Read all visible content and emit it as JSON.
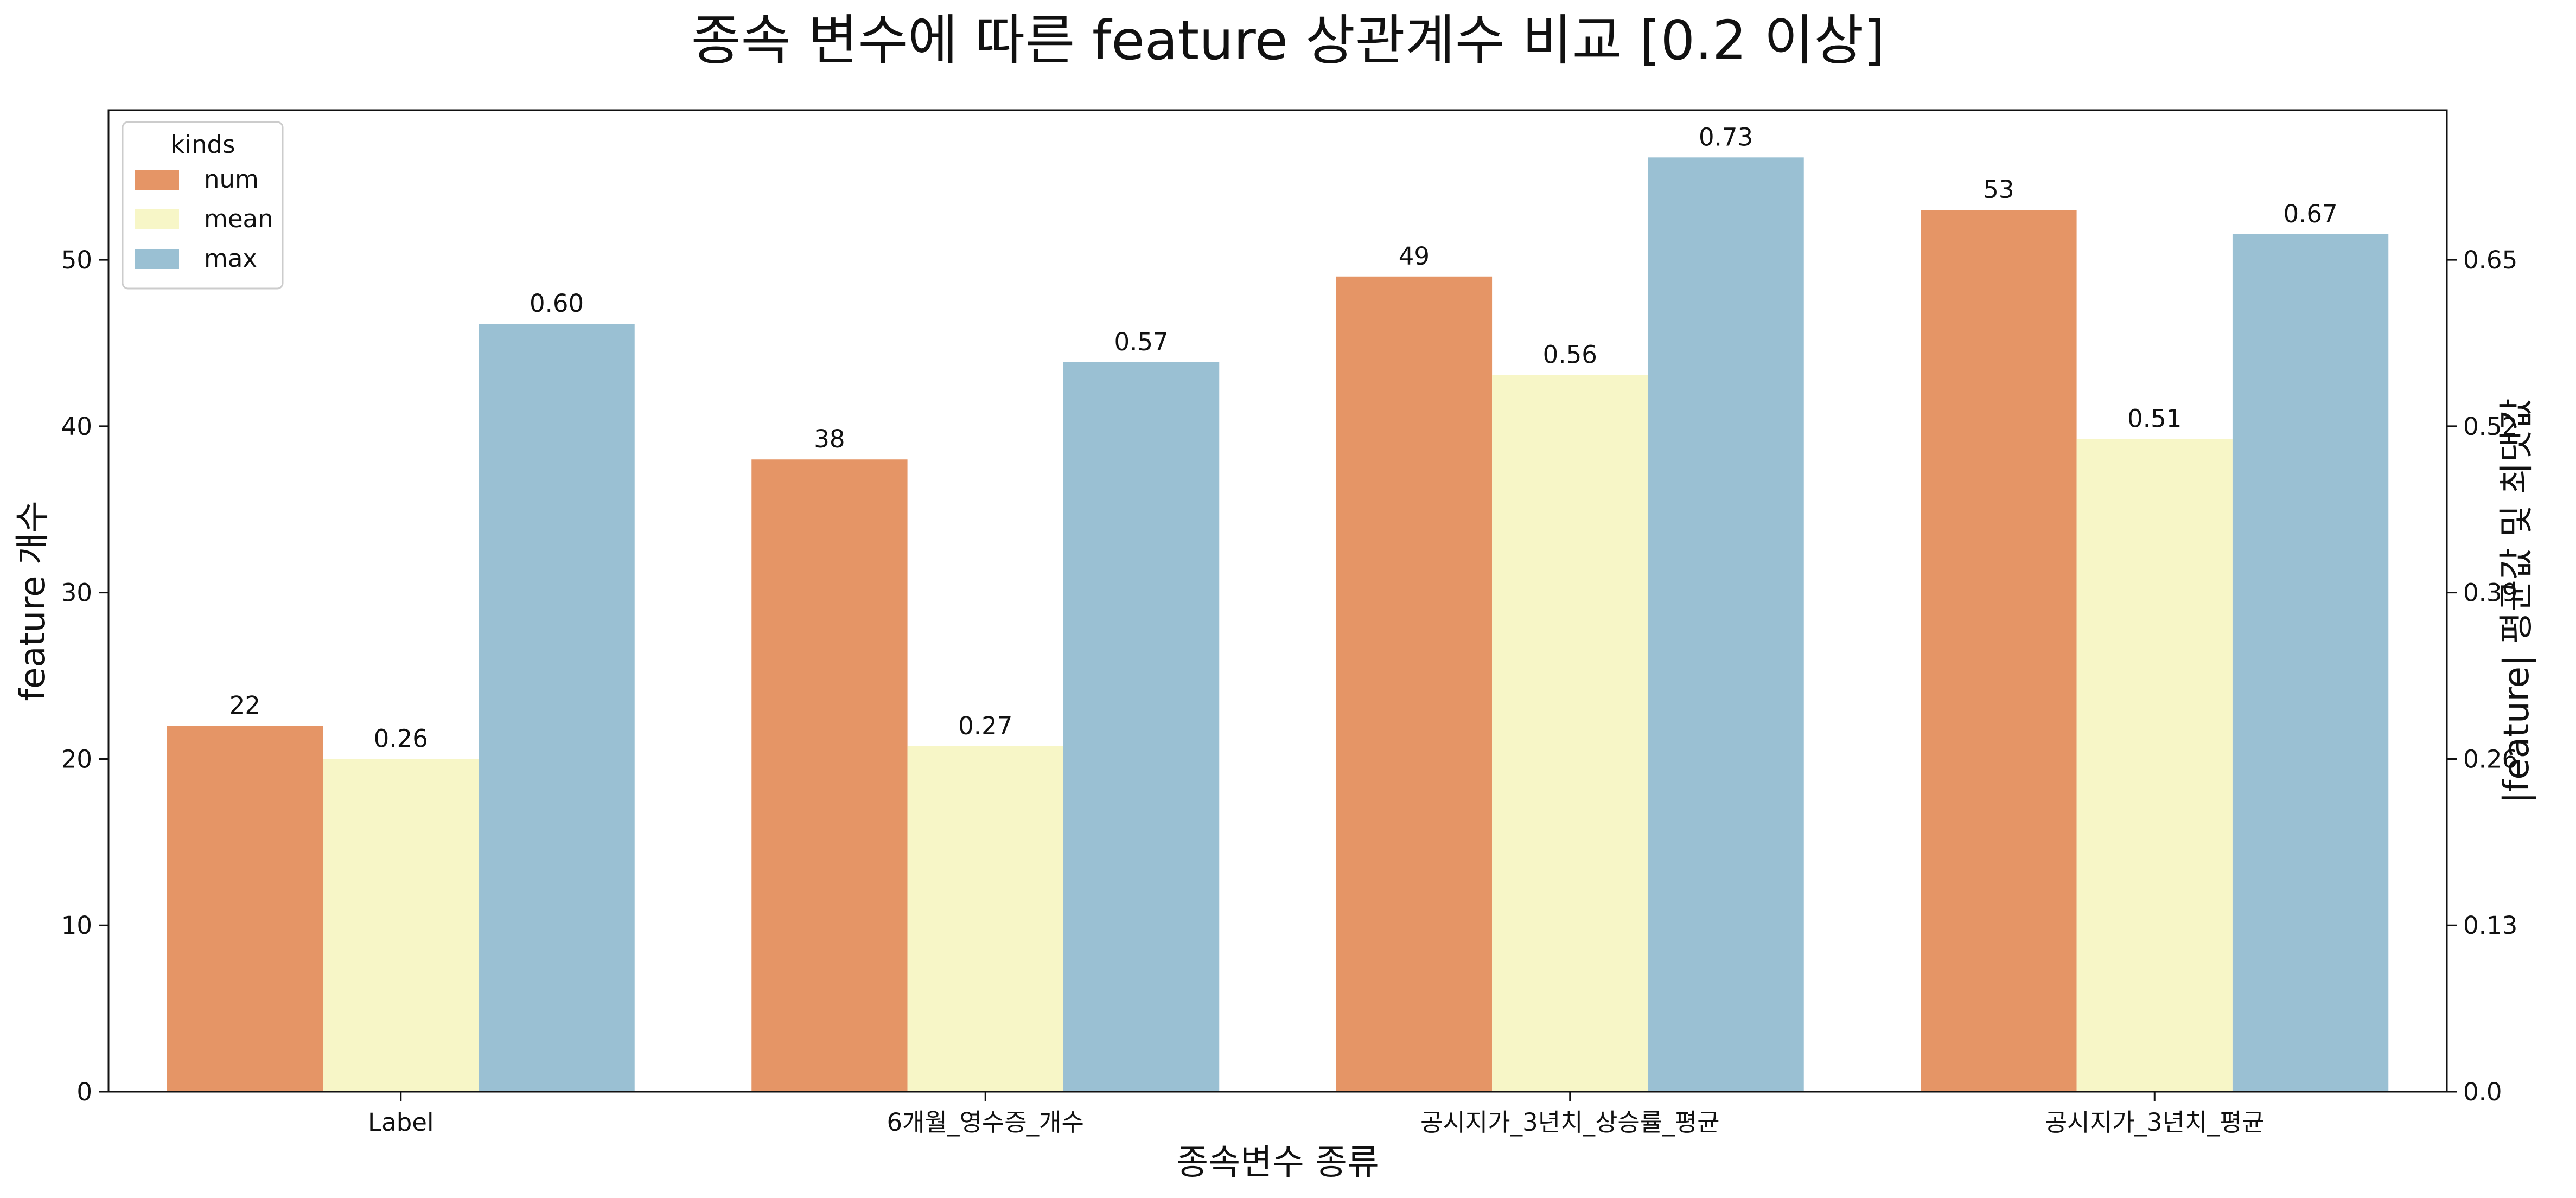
{
  "chart_data": {
    "type": "bar",
    "title": "종속 변수에 따른 feature 상관계수 비교 [0.2 이상]",
    "xlabel": "종속변수 종류",
    "ylabel": "feature 개수",
    "ylabel_right": "|feature| 평균값 및 최댓값",
    "categories": [
      "Label",
      "6개월_영수증_개수",
      "공시지가_3년치_상승률_평균",
      "공시지가_3년치_평균"
    ],
    "series": [
      {
        "name": "num",
        "axis": "left",
        "color": "#e59566",
        "values": [
          22,
          38,
          49,
          53
        ],
        "labels": [
          "22",
          "38",
          "49",
          "53"
        ]
      },
      {
        "name": "mean",
        "axis": "right",
        "color": "#f7f6c7",
        "values": [
          0.26,
          0.27,
          0.56,
          0.51
        ],
        "labels": [
          "0.26",
          "0.27",
          "0.56",
          "0.51"
        ]
      },
      {
        "name": "max",
        "axis": "right",
        "color": "#9ac0d3",
        "values": [
          0.6,
          0.57,
          0.73,
          0.67
        ],
        "labels": [
          "0.60",
          "0.57",
          "0.73",
          "0.67"
        ]
      }
    ],
    "ylim": [
      0,
      59
    ],
    "yticks": [
      0,
      10,
      20,
      30,
      40,
      50
    ],
    "ylim_right": [
      0,
      0.767
    ],
    "yticks_right": [
      0.0,
      0.13,
      0.26,
      0.39,
      0.52,
      0.65
    ],
    "ytick_labels_right": [
      "0.0",
      "0.13",
      "0.26",
      "0.39",
      "0.52",
      "0.65"
    ],
    "legend": {
      "title": "kinds",
      "location": "top-left",
      "entries": [
        "num",
        "mean",
        "max"
      ]
    },
    "grid": false
  }
}
